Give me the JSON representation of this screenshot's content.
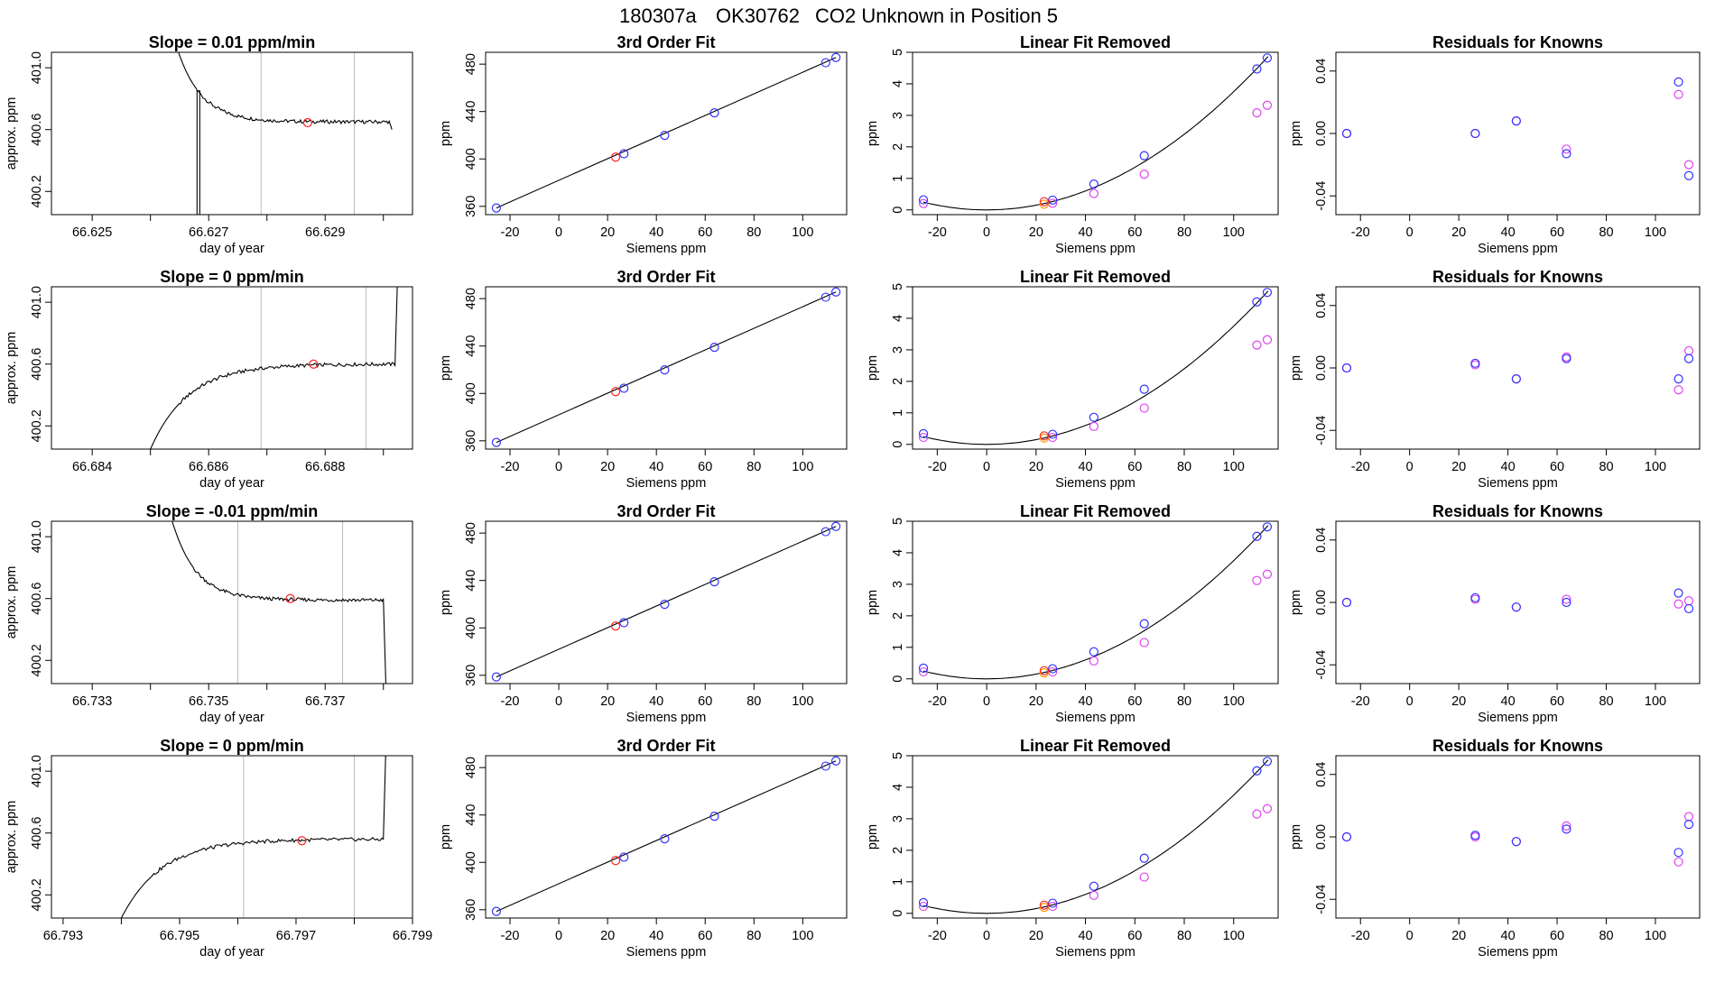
{
  "suptitle": {
    "run_id": "180307a",
    "tank_id": "OK30762",
    "description": "CO2 Unknown in Position  5"
  },
  "colors": {
    "known_blue": "#3333ff",
    "known_magenta": "#dd44ee",
    "unknown_red": "#ff2222",
    "unknown_orange": "#ff9900",
    "line": "#000000",
    "vline": "#bbbbbb"
  },
  "chart_data": [
    {
      "type": "line",
      "row": 0,
      "col": 0,
      "title": "Slope =  0.01  ppm/min",
      "xlabel": "day of year",
      "ylabel": "approx. ppm",
      "xlim": [
        66.6243,
        66.6305
      ],
      "ylim": [
        400.05,
        401.1
      ],
      "xticks": [
        66.625,
        66.627,
        66.629
      ],
      "xticklabels": [
        "66.625",
        "66.627",
        "66.629"
      ],
      "xminor": [
        66.626,
        66.628,
        66.63
      ],
      "yticks": [
        400.2,
        400.6,
        401.0
      ],
      "yticklabels": [
        "400.2",
        "400.6",
        "401.0"
      ],
      "vlines": [
        66.6279,
        66.6295
      ],
      "unknown_point": {
        "x": 66.6287,
        "y": 400.645
      },
      "trace": {
        "shape": "decay",
        "x_start": 66.6264,
        "x_drop": 66.6268,
        "x_end": 66.6301,
        "y_start": 401.2,
        "y_plateau": 400.65,
        "y_drop_bottom": 400.05,
        "y_end_tail": 400.6
      }
    },
    {
      "type": "line",
      "row": 1,
      "col": 0,
      "title": "Slope =  0  ppm/min",
      "xlabel": "day of year",
      "ylabel": "approx. ppm",
      "xlim": [
        66.6833,
        66.6895
      ],
      "ylim": [
        400.05,
        401.1
      ],
      "xticks": [
        66.684,
        66.686,
        66.688
      ],
      "xticklabels": [
        "66.684",
        "66.686",
        "66.688"
      ],
      "xminor": [
        66.685,
        66.687,
        66.689
      ],
      "yticks": [
        400.2,
        400.6,
        401.0
      ],
      "yticklabels": [
        "400.2",
        "400.6",
        "401.0"
      ],
      "vlines": [
        66.6869,
        66.6887
      ],
      "unknown_point": {
        "x": 66.6878,
        "y": 400.6
      },
      "trace": {
        "shape": "rise",
        "x_start": 66.685,
        "x_end": 66.6892,
        "y_start": 400.05,
        "y_plateau": 400.6,
        "y_end_tail": 401.2
      }
    },
    {
      "type": "line",
      "row": 2,
      "col": 0,
      "title": "Slope =  -0.01  ppm/min",
      "xlabel": "day of year",
      "ylabel": "approx. ppm",
      "xlim": [
        66.7323,
        66.7385
      ],
      "ylim": [
        400.05,
        401.1
      ],
      "xticks": [
        66.733,
        66.735,
        66.737
      ],
      "xticklabels": [
        "66.733",
        "66.735",
        "66.737"
      ],
      "xminor": [
        66.734,
        66.736,
        66.738
      ],
      "yticks": [
        400.2,
        400.6,
        401.0
      ],
      "yticklabels": [
        "400.2",
        "400.6",
        "401.0"
      ],
      "vlines": [
        66.7355,
        66.7373
      ],
      "unknown_point": {
        "x": 66.7364,
        "y": 400.6
      },
      "trace": {
        "shape": "decay_nodrop",
        "x_start": 66.7343,
        "x_end": 66.738,
        "y_start": 401.2,
        "y_plateau": 400.59,
        "y_end_tail": 400.0
      }
    },
    {
      "type": "line",
      "row": 3,
      "col": 0,
      "title": "Slope =  0  ppm/min",
      "xlabel": "day of year",
      "ylabel": "approx. ppm",
      "xlim": [
        66.7928,
        66.799
      ],
      "ylim": [
        400.05,
        401.1
      ],
      "xticks": [
        66.793,
        66.795,
        66.797,
        66.799
      ],
      "xticklabels": [
        "66.793",
        "66.795",
        "66.797",
        "66.799"
      ],
      "xminor": [
        66.794,
        66.796,
        66.798
      ],
      "yticks": [
        400.2,
        400.6,
        401.0
      ],
      "yticklabels": [
        "400.2",
        "400.6",
        "401.0"
      ],
      "vlines": [
        66.7961,
        66.798
      ],
      "unknown_point": {
        "x": 66.7971,
        "y": 400.55
      },
      "trace": {
        "shape": "rise",
        "x_start": 66.794,
        "x_end": 66.7985,
        "y_start": 400.05,
        "y_plateau": 400.56,
        "y_end_tail": 401.2
      }
    },
    {
      "type": "scatter",
      "row": 0,
      "col": 1,
      "title": "3rd Order Fit",
      "xlabel": "Siemens ppm",
      "ylabel": "ppm",
      "xlim": [
        -30,
        118
      ],
      "ylim": [
        353,
        490
      ],
      "xticks": [
        -20,
        0,
        20,
        40,
        60,
        80,
        100
      ],
      "yticks": [
        360,
        400,
        440,
        480
      ],
      "fit_line": [
        [
          -25.6,
          358.6
        ],
        [
          113.6,
          485.6
        ]
      ],
      "known_blue": [
        [
          -25.6,
          358.6
        ],
        [
          26.7,
          404.4
        ],
        [
          43.4,
          419.9
        ],
        [
          63.8,
          438.9
        ],
        [
          109.4,
          481.2
        ],
        [
          113.6,
          485.6
        ]
      ],
      "unknown_red": [
        [
          23.3,
          401.5
        ]
      ]
    },
    {
      "type": "scatter",
      "row": 1,
      "col": 1,
      "title": "3rd Order Fit",
      "xlabel": "Siemens ppm",
      "ylabel": "ppm",
      "xlim": [
        -30,
        118
      ],
      "ylim": [
        353,
        490
      ],
      "xticks": [
        -20,
        0,
        20,
        40,
        60,
        80,
        100
      ],
      "yticks": [
        360,
        400,
        440,
        480
      ],
      "fit_line": [
        [
          -25.6,
          358.6
        ],
        [
          113.6,
          485.6
        ]
      ],
      "known_blue": [
        [
          -25.6,
          358.6
        ],
        [
          26.7,
          404.4
        ],
        [
          43.4,
          419.9
        ],
        [
          63.8,
          438.9
        ],
        [
          109.4,
          481.2
        ],
        [
          113.6,
          485.6
        ]
      ],
      "unknown_red": [
        [
          23.3,
          401.5
        ]
      ]
    },
    {
      "type": "scatter",
      "row": 2,
      "col": 1,
      "title": "3rd Order Fit",
      "xlabel": "Siemens ppm",
      "ylabel": "ppm",
      "xlim": [
        -30,
        118
      ],
      "ylim": [
        353,
        490
      ],
      "xticks": [
        -20,
        0,
        20,
        40,
        60,
        80,
        100
      ],
      "yticks": [
        360,
        400,
        440,
        480
      ],
      "fit_line": [
        [
          -25.6,
          358.6
        ],
        [
          113.6,
          485.6
        ]
      ],
      "known_blue": [
        [
          -25.6,
          358.6
        ],
        [
          26.7,
          404.4
        ],
        [
          43.4,
          419.9
        ],
        [
          63.8,
          438.9
        ],
        [
          109.4,
          481.2
        ],
        [
          113.6,
          485.6
        ]
      ],
      "unknown_red": [
        [
          23.3,
          401.5
        ]
      ]
    },
    {
      "type": "scatter",
      "row": 3,
      "col": 1,
      "title": "3rd Order Fit",
      "xlabel": "Siemens ppm",
      "ylabel": "ppm",
      "xlim": [
        -30,
        118
      ],
      "ylim": [
        353,
        490
      ],
      "xticks": [
        -20,
        0,
        20,
        40,
        60,
        80,
        100
      ],
      "yticks": [
        360,
        400,
        440,
        480
      ],
      "fit_line": [
        [
          -25.6,
          358.6
        ],
        [
          113.6,
          485.6
        ]
      ],
      "known_blue": [
        [
          -25.6,
          358.6
        ],
        [
          26.7,
          404.4
        ],
        [
          43.4,
          419.9
        ],
        [
          63.8,
          438.9
        ],
        [
          109.4,
          481.2
        ],
        [
          113.6,
          485.6
        ]
      ],
      "unknown_red": [
        [
          23.3,
          401.5
        ]
      ]
    },
    {
      "type": "scatter",
      "row": 0,
      "col": 2,
      "title": "Linear Fit Removed",
      "xlabel": "Siemens ppm",
      "ylabel": "ppm",
      "xlim": [
        -30,
        118
      ],
      "ylim": [
        -0.15,
        5.0
      ],
      "xticks": [
        -20,
        0,
        20,
        40,
        60,
        80,
        100
      ],
      "yticks": [
        0,
        1,
        2,
        3,
        4,
        5
      ],
      "curve_coef": 0.000375,
      "known_blue": [
        [
          -25.6,
          0.32
        ],
        [
          26.7,
          0.31
        ],
        [
          43.4,
          0.82
        ],
        [
          63.8,
          1.72
        ],
        [
          109.4,
          4.47
        ],
        [
          113.6,
          4.82
        ]
      ],
      "known_magenta": [
        [
          -25.6,
          0.2
        ],
        [
          26.7,
          0.21
        ],
        [
          43.4,
          0.52
        ],
        [
          63.8,
          1.13
        ],
        [
          109.4,
          3.08
        ],
        [
          113.6,
          3.32
        ]
      ],
      "unknown_red": [
        [
          23.3,
          0.26
        ]
      ],
      "unknown_orange": [
        [
          23.3,
          0.18
        ]
      ]
    },
    {
      "type": "scatter",
      "row": 1,
      "col": 2,
      "title": "Linear Fit Removed",
      "xlabel": "Siemens ppm",
      "ylabel": "ppm",
      "xlim": [
        -30,
        118
      ],
      "ylim": [
        -0.15,
        5.0
      ],
      "xticks": [
        -20,
        0,
        20,
        40,
        60,
        80,
        100
      ],
      "yticks": [
        0,
        1,
        2,
        3,
        4,
        5
      ],
      "curve_coef": 0.000375,
      "known_blue": [
        [
          -25.6,
          0.34
        ],
        [
          26.7,
          0.32
        ],
        [
          43.4,
          0.86
        ],
        [
          63.8,
          1.75
        ],
        [
          109.4,
          4.52
        ],
        [
          113.6,
          4.82
        ]
      ],
      "known_magenta": [
        [
          -25.6,
          0.22
        ],
        [
          26.7,
          0.22
        ],
        [
          43.4,
          0.57
        ],
        [
          63.8,
          1.15
        ],
        [
          109.4,
          3.15
        ],
        [
          113.6,
          3.32
        ]
      ],
      "unknown_red": [
        [
          23.3,
          0.27
        ]
      ],
      "unknown_orange": [
        [
          23.3,
          0.2
        ]
      ]
    },
    {
      "type": "scatter",
      "row": 2,
      "col": 2,
      "title": "Linear Fit Removed",
      "xlabel": "Siemens ppm",
      "ylabel": "ppm",
      "xlim": [
        -30,
        118
      ],
      "ylim": [
        -0.15,
        5.0
      ],
      "xticks": [
        -20,
        0,
        20,
        40,
        60,
        80,
        100
      ],
      "yticks": [
        0,
        1,
        2,
        3,
        4,
        5
      ],
      "curve_coef": 0.000375,
      "known_blue": [
        [
          -25.6,
          0.34
        ],
        [
          26.7,
          0.32
        ],
        [
          43.4,
          0.86
        ],
        [
          63.8,
          1.75
        ],
        [
          109.4,
          4.52
        ],
        [
          113.6,
          4.82
        ]
      ],
      "known_magenta": [
        [
          -25.6,
          0.22
        ],
        [
          26.7,
          0.22
        ],
        [
          43.4,
          0.57
        ],
        [
          63.8,
          1.15
        ],
        [
          109.4,
          3.12
        ],
        [
          113.6,
          3.32
        ]
      ],
      "unknown_red": [
        [
          23.3,
          0.26
        ]
      ],
      "unknown_orange": [
        [
          23.3,
          0.19
        ]
      ]
    },
    {
      "type": "scatter",
      "row": 3,
      "col": 2,
      "title": "Linear Fit Removed",
      "xlabel": "Siemens ppm",
      "ylabel": "ppm",
      "xlim": [
        -30,
        118
      ],
      "ylim": [
        -0.15,
        5.0
      ],
      "xticks": [
        -20,
        0,
        20,
        40,
        60,
        80,
        100
      ],
      "yticks": [
        0,
        1,
        2,
        3,
        4,
        5
      ],
      "curve_coef": 0.000375,
      "known_blue": [
        [
          -25.6,
          0.34
        ],
        [
          26.7,
          0.32
        ],
        [
          43.4,
          0.86
        ],
        [
          63.8,
          1.75
        ],
        [
          109.4,
          4.52
        ],
        [
          113.6,
          4.82
        ]
      ],
      "known_magenta": [
        [
          -25.6,
          0.22
        ],
        [
          26.7,
          0.22
        ],
        [
          43.4,
          0.57
        ],
        [
          63.8,
          1.15
        ],
        [
          109.4,
          3.15
        ],
        [
          113.6,
          3.32
        ]
      ],
      "unknown_red": [
        [
          23.3,
          0.26
        ]
      ],
      "unknown_orange": [
        [
          23.3,
          0.19
        ]
      ]
    },
    {
      "type": "scatter",
      "row": 0,
      "col": 3,
      "title": "Residuals for Knowns",
      "xlabel": "Siemens ppm",
      "ylabel": "ppm",
      "xlim": [
        -30,
        118
      ],
      "ylim": [
        -0.052,
        0.052
      ],
      "xticks": [
        -20,
        0,
        20,
        40,
        60,
        80,
        100
      ],
      "yticks": [
        -0.04,
        0.0,
        0.04
      ],
      "yticklabels": [
        "-0.04",
        "0.00",
        "0.04"
      ],
      "known_blue": [
        [
          -25.6,
          0.0
        ],
        [
          26.7,
          0.0
        ],
        [
          43.4,
          0.008
        ],
        [
          63.8,
          -0.013
        ],
        [
          109.4,
          0.033
        ],
        [
          113.6,
          -0.027
        ]
      ],
      "known_magenta": [
        [
          -25.6,
          0.0
        ],
        [
          26.7,
          0.0
        ],
        [
          43.4,
          0.008
        ],
        [
          63.8,
          -0.01
        ],
        [
          109.4,
          0.025
        ],
        [
          113.6,
          -0.02
        ]
      ]
    },
    {
      "type": "scatter",
      "row": 1,
      "col": 3,
      "title": "Residuals for Knowns",
      "xlabel": "Siemens ppm",
      "ylabel": "ppm",
      "xlim": [
        -30,
        118
      ],
      "ylim": [
        -0.052,
        0.052
      ],
      "xticks": [
        -20,
        0,
        20,
        40,
        60,
        80,
        100
      ],
      "yticks": [
        -0.04,
        0.0,
        0.04
      ],
      "yticklabels": [
        "-0.04",
        "0.00",
        "0.04"
      ],
      "known_blue": [
        [
          -25.6,
          0.0
        ],
        [
          26.7,
          0.003
        ],
        [
          43.4,
          -0.007
        ],
        [
          63.8,
          0.006
        ],
        [
          109.4,
          -0.007
        ],
        [
          113.6,
          0.006
        ]
      ],
      "known_magenta": [
        [
          -25.6,
          0.0
        ],
        [
          26.7,
          0.002
        ],
        [
          43.4,
          -0.007
        ],
        [
          63.8,
          0.007
        ],
        [
          109.4,
          -0.014
        ],
        [
          113.6,
          0.011
        ]
      ]
    },
    {
      "type": "scatter",
      "row": 2,
      "col": 3,
      "title": "Residuals for Knowns",
      "xlabel": "Siemens ppm",
      "ylabel": "ppm",
      "xlim": [
        -30,
        118
      ],
      "ylim": [
        -0.052,
        0.052
      ],
      "xticks": [
        -20,
        0,
        20,
        40,
        60,
        80,
        100
      ],
      "yticks": [
        -0.04,
        0.0,
        0.04
      ],
      "yticklabels": [
        "-0.04",
        "0.00",
        "0.04"
      ],
      "known_blue": [
        [
          -25.6,
          0.0
        ],
        [
          26.7,
          0.003
        ],
        [
          43.4,
          -0.003
        ],
        [
          63.8,
          0.0
        ],
        [
          109.4,
          0.006
        ],
        [
          113.6,
          -0.004
        ]
      ],
      "known_magenta": [
        [
          -25.6,
          0.0
        ],
        [
          26.7,
          0.002
        ],
        [
          43.4,
          -0.003
        ],
        [
          63.8,
          0.002
        ],
        [
          109.4,
          -0.001
        ],
        [
          113.6,
          0.001
        ]
      ]
    },
    {
      "type": "scatter",
      "row": 3,
      "col": 3,
      "title": "Residuals for Knowns",
      "xlabel": "Siemens ppm",
      "ylabel": "ppm",
      "xlim": [
        -30,
        118
      ],
      "ylim": [
        -0.052,
        0.052
      ],
      "xticks": [
        -20,
        0,
        20,
        40,
        60,
        80,
        100
      ],
      "yticks": [
        -0.04,
        0.0,
        0.04
      ],
      "yticklabels": [
        "-0.04",
        "0.00",
        "0.04"
      ],
      "known_blue": [
        [
          -25.6,
          0.0
        ],
        [
          26.7,
          0.001
        ],
        [
          43.4,
          -0.003
        ],
        [
          63.8,
          0.005
        ],
        [
          109.4,
          -0.01
        ],
        [
          113.6,
          0.008
        ]
      ],
      "known_magenta": [
        [
          -25.6,
          0.0
        ],
        [
          26.7,
          0.0
        ],
        [
          43.4,
          -0.003
        ],
        [
          63.8,
          0.007
        ],
        [
          109.4,
          -0.016
        ],
        [
          113.6,
          0.013
        ]
      ]
    }
  ]
}
